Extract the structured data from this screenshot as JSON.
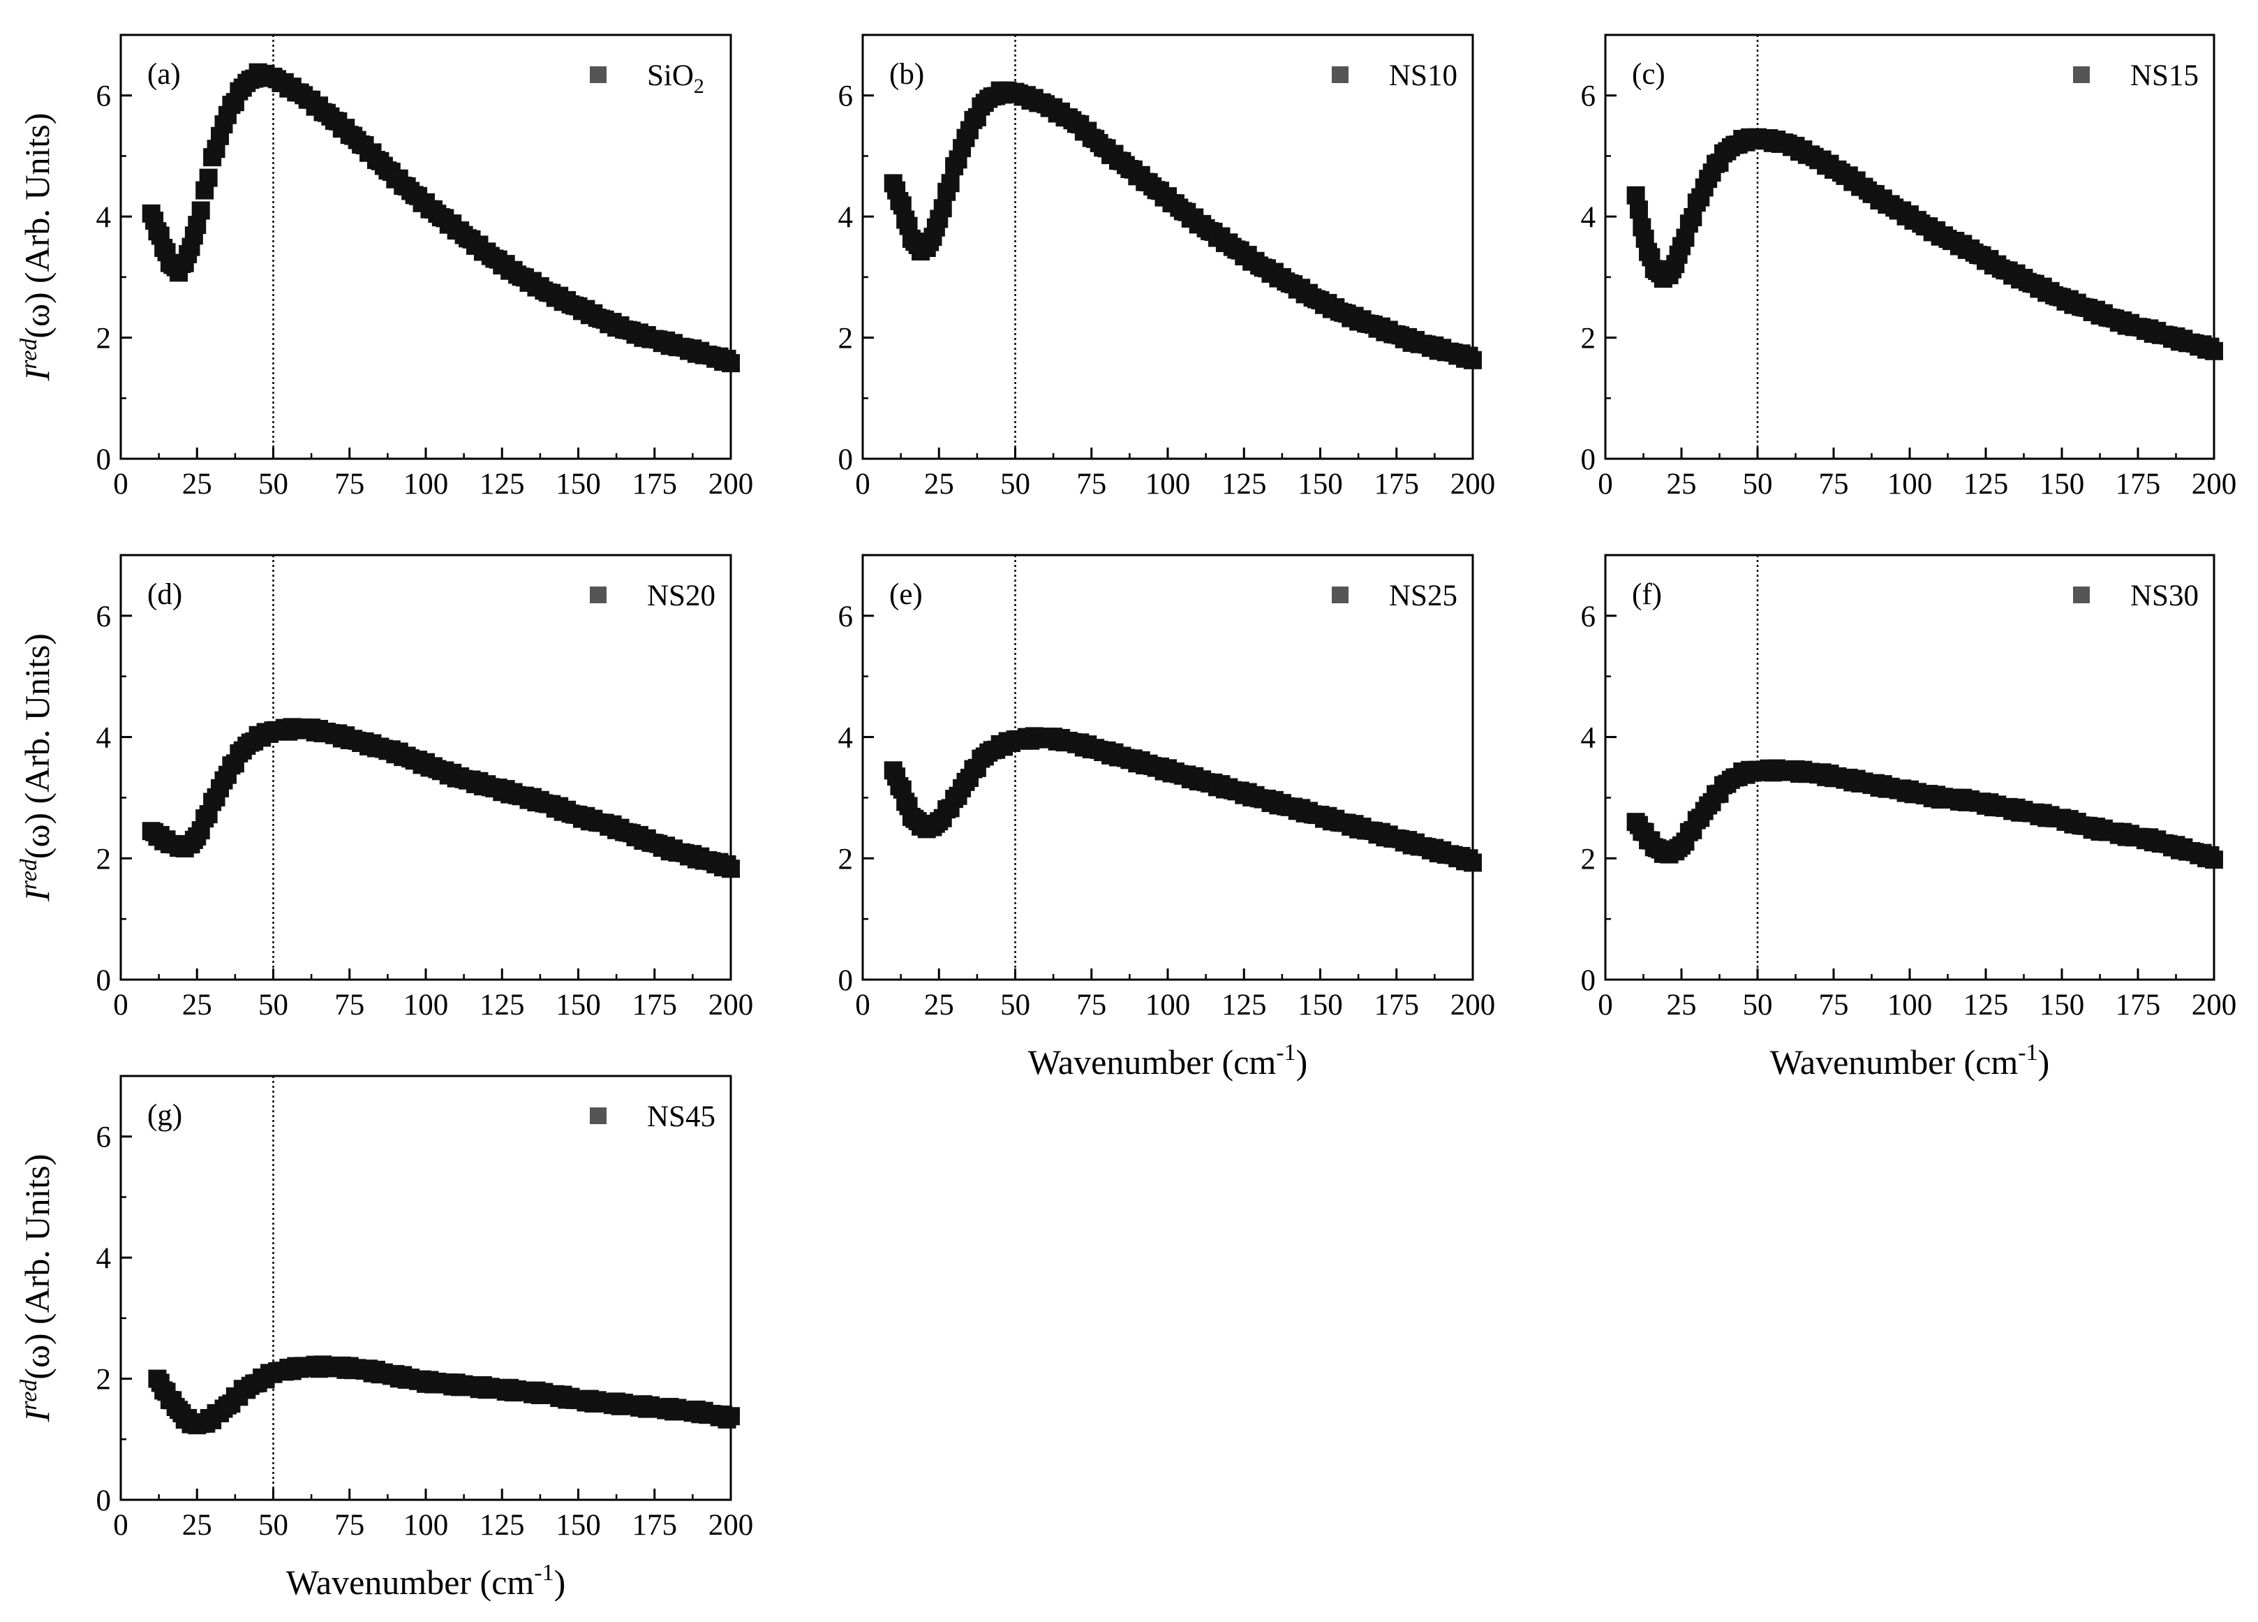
{
  "figure": {
    "shared_x_label": "Wavenumber (cm",
    "shared_x_label_sup": "-1",
    "shared_x_label_close": ")"
  },
  "chart_data": [
    {
      "type": "scatter",
      "panel": "(a)",
      "series_name": "SiO",
      "series_sub": "2",
      "xlabel": "",
      "ylabel": "Ired(ω) (Arb. Units)",
      "ylabel_base": "I",
      "ylabel_sup": "red",
      "ylabel_rest": "(ω) (Arb. Units)",
      "xlim": [
        0,
        200
      ],
      "ylim": [
        0,
        7
      ],
      "xticks": [
        0,
        25,
        50,
        75,
        100,
        125,
        150,
        175,
        200
      ],
      "yticks": [
        0,
        2,
        4,
        6
      ],
      "vline_x": 50,
      "marker": "square",
      "color": "#555555",
      "x": [
        10,
        13,
        16,
        19,
        22,
        25,
        30,
        35,
        40,
        45,
        50,
        60,
        70,
        80,
        90,
        100,
        110,
        120,
        130,
        140,
        150,
        160,
        170,
        180,
        190,
        200
      ],
      "y": [
        4.05,
        3.65,
        3.25,
        3.1,
        3.35,
        3.85,
        4.95,
        5.7,
        6.15,
        6.35,
        6.3,
        6.0,
        5.6,
        5.15,
        4.65,
        4.2,
        3.8,
        3.4,
        3.05,
        2.75,
        2.5,
        2.25,
        2.05,
        1.9,
        1.75,
        1.6
      ]
    },
    {
      "type": "scatter",
      "panel": "(b)",
      "series_name": "NS10",
      "series_sub": "",
      "xlabel": "",
      "ylabel": "",
      "ylabel_base": "",
      "ylabel_sup": "",
      "ylabel_rest": "",
      "xlim": [
        0,
        200
      ],
      "ylim": [
        0,
        7
      ],
      "xticks": [
        0,
        25,
        50,
        75,
        100,
        125,
        150,
        175,
        200
      ],
      "yticks": [
        0,
        2,
        4,
        6
      ],
      "vline_x": 50,
      "marker": "square",
      "color": "#555555",
      "x": [
        10,
        13,
        16,
        19,
        22,
        25,
        30,
        35,
        40,
        45,
        50,
        60,
        70,
        80,
        90,
        100,
        110,
        120,
        130,
        140,
        150,
        160,
        170,
        180,
        190,
        200
      ],
      "y": [
        4.55,
        4.15,
        3.65,
        3.45,
        3.55,
        3.95,
        4.8,
        5.45,
        5.9,
        6.05,
        6.05,
        5.85,
        5.55,
        5.1,
        4.7,
        4.3,
        3.9,
        3.55,
        3.2,
        2.9,
        2.6,
        2.35,
        2.15,
        1.95,
        1.8,
        1.65
      ]
    },
    {
      "type": "scatter",
      "panel": "(c)",
      "series_name": "NS15",
      "series_sub": "",
      "xlabel": "",
      "ylabel": "",
      "ylabel_base": "",
      "ylabel_sup": "",
      "ylabel_rest": "",
      "xlim": [
        0,
        200
      ],
      "ylim": [
        0,
        7
      ],
      "xticks": [
        0,
        25,
        50,
        75,
        100,
        125,
        150,
        175,
        200
      ],
      "yticks": [
        0,
        2,
        4,
        6
      ],
      "vline_x": 50,
      "marker": "square",
      "color": "#555555",
      "x": [
        10,
        13,
        16,
        19,
        22,
        25,
        30,
        35,
        40,
        45,
        50,
        60,
        70,
        80,
        90,
        100,
        110,
        120,
        130,
        140,
        150,
        160,
        170,
        180,
        190,
        200
      ],
      "y": [
        4.35,
        3.6,
        3.15,
        3.0,
        3.1,
        3.5,
        4.2,
        4.75,
        5.1,
        5.25,
        5.3,
        5.2,
        4.95,
        4.65,
        4.3,
        4.0,
        3.7,
        3.45,
        3.15,
        2.9,
        2.65,
        2.45,
        2.25,
        2.1,
        1.95,
        1.8
      ]
    },
    {
      "type": "scatter",
      "panel": "(d)",
      "series_name": "NS20",
      "series_sub": "",
      "xlabel": "",
      "ylabel": "Ired(ω) (Arb. Units)",
      "ylabel_base": "I",
      "ylabel_sup": "red",
      "ylabel_rest": "(ω) (Arb. Units)",
      "xlim": [
        0,
        200
      ],
      "ylim": [
        0,
        7
      ],
      "xticks": [
        0,
        25,
        50,
        75,
        100,
        125,
        150,
        175,
        200
      ],
      "yticks": [
        0,
        2,
        4,
        6
      ],
      "vline_x": 50,
      "marker": "square",
      "color": "#555555",
      "x": [
        10,
        13,
        16,
        19,
        22,
        25,
        30,
        35,
        40,
        45,
        50,
        60,
        70,
        80,
        90,
        100,
        110,
        120,
        130,
        140,
        150,
        160,
        170,
        180,
        190,
        200
      ],
      "y": [
        2.45,
        2.35,
        2.25,
        2.2,
        2.2,
        2.35,
        2.9,
        3.4,
        3.8,
        4.0,
        4.1,
        4.15,
        4.05,
        3.9,
        3.75,
        3.55,
        3.35,
        3.2,
        3.05,
        2.9,
        2.7,
        2.55,
        2.35,
        2.15,
        2.0,
        1.85
      ]
    },
    {
      "type": "scatter",
      "panel": "(e)",
      "series_name": "NS25",
      "series_sub": "",
      "xlabel": "Wavenumber (cm-1)",
      "ylabel": "",
      "ylabel_base": "",
      "ylabel_sup": "",
      "ylabel_rest": "",
      "xlim": [
        0,
        200
      ],
      "ylim": [
        0,
        7
      ],
      "xticks": [
        0,
        25,
        50,
        75,
        100,
        125,
        150,
        175,
        200
      ],
      "yticks": [
        0,
        2,
        4,
        6
      ],
      "vline_x": 50,
      "marker": "square",
      "color": "#555555",
      "x": [
        10,
        13,
        16,
        19,
        22,
        25,
        30,
        35,
        40,
        45,
        50,
        60,
        70,
        80,
        90,
        100,
        110,
        120,
        130,
        140,
        150,
        160,
        170,
        180,
        190,
        200
      ],
      "y": [
        3.45,
        3.1,
        2.7,
        2.55,
        2.5,
        2.6,
        2.95,
        3.35,
        3.7,
        3.85,
        3.95,
        4.0,
        3.9,
        3.75,
        3.6,
        3.45,
        3.3,
        3.15,
        3.0,
        2.85,
        2.7,
        2.55,
        2.4,
        2.25,
        2.1,
        1.95
      ]
    },
    {
      "type": "scatter",
      "panel": "(f)",
      "series_name": "NS30",
      "series_sub": "",
      "xlabel": "Wavenumber (cm-1)",
      "ylabel": "",
      "ylabel_base": "",
      "ylabel_sup": "",
      "ylabel_rest": "",
      "xlim": [
        0,
        200
      ],
      "ylim": [
        0,
        7
      ],
      "xticks": [
        0,
        25,
        50,
        75,
        100,
        125,
        150,
        175,
        200
      ],
      "yticks": [
        0,
        2,
        4,
        6
      ],
      "vline_x": 50,
      "marker": "square",
      "color": "#555555",
      "x": [
        10,
        13,
        16,
        19,
        22,
        25,
        30,
        35,
        40,
        45,
        50,
        60,
        70,
        80,
        90,
        100,
        110,
        120,
        130,
        140,
        150,
        160,
        170,
        180,
        190,
        200
      ],
      "y": [
        2.6,
        2.4,
        2.2,
        2.1,
        2.1,
        2.2,
        2.6,
        2.95,
        3.25,
        3.4,
        3.45,
        3.45,
        3.4,
        3.3,
        3.2,
        3.1,
        3.0,
        2.95,
        2.85,
        2.75,
        2.65,
        2.5,
        2.4,
        2.3,
        2.15,
        2.0
      ]
    },
    {
      "type": "scatter",
      "panel": "(g)",
      "series_name": "NS45",
      "series_sub": "",
      "xlabel": "Wavenumber (cm-1)",
      "ylabel": "Ired(ω) (Arb. Units)",
      "ylabel_base": "I",
      "ylabel_sup": "red",
      "ylabel_rest": "(ω) (Arb. Units)",
      "xlim": [
        0,
        200
      ],
      "ylim": [
        0,
        7
      ],
      "xticks": [
        0,
        25,
        50,
        75,
        100,
        125,
        150,
        175,
        200
      ],
      "yticks": [
        0,
        2,
        4,
        6
      ],
      "vline_x": 50,
      "marker": "square",
      "color": "#555555",
      "x": [
        12,
        15,
        18,
        21,
        24,
        27,
        30,
        35,
        40,
        45,
        50,
        60,
        70,
        80,
        90,
        100,
        110,
        120,
        130,
        140,
        150,
        160,
        170,
        180,
        190,
        200
      ],
      "y": [
        2.0,
        1.75,
        1.55,
        1.35,
        1.25,
        1.25,
        1.35,
        1.55,
        1.8,
        1.95,
        2.1,
        2.2,
        2.2,
        2.15,
        2.05,
        1.95,
        1.9,
        1.85,
        1.8,
        1.75,
        1.65,
        1.6,
        1.55,
        1.5,
        1.45,
        1.35
      ]
    }
  ]
}
